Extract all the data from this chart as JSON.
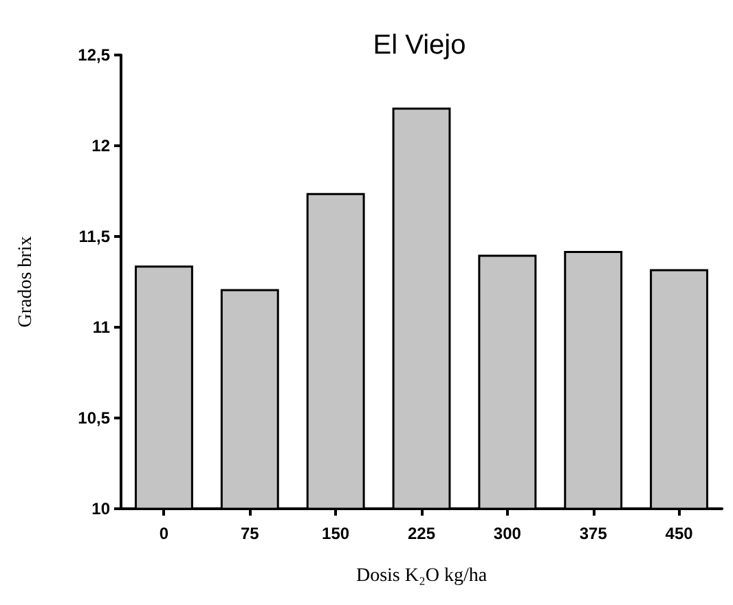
{
  "chart_data": {
    "type": "bar",
    "title": "El Viejo",
    "xlabel": "Dosis K₂O kg/ha",
    "ylabel": "Grados brix",
    "categories": [
      "0",
      "75",
      "150",
      "225",
      "300",
      "375",
      "450"
    ],
    "values": [
      11.34,
      11.21,
      11.74,
      12.21,
      11.4,
      11.42,
      11.32
    ],
    "color": "#c4c4c4",
    "ylim": [
      10,
      12.5
    ],
    "yticks": [
      "10",
      {
        "value": 10.5,
        "label": "10,5"
      },
      "11",
      {
        "value": 11.5,
        "label": "11,5"
      },
      "12",
      {
        "value": 12.5,
        "label": "12,5"
      }
    ],
    "grid": false
  }
}
